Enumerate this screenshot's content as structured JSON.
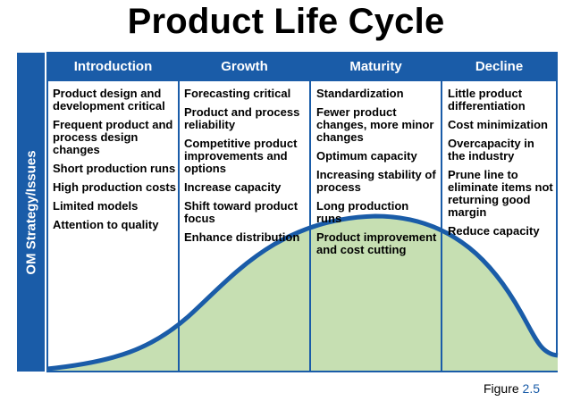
{
  "title": "Product Life Cycle",
  "side_label": "OM Strategy/Issues",
  "stages": [
    {
      "name": "Introduction",
      "items": [
        "Product design and development critical",
        "Frequent product and process design changes",
        "Short production runs",
        "High production costs",
        "Limited models",
        "Attention to quality"
      ]
    },
    {
      "name": "Growth",
      "items": [
        "Forecasting critical",
        "Product and process reliability",
        "Competitive product improvements and options",
        "Increase capacity",
        "Shift toward product focus",
        "Enhance distribution"
      ]
    },
    {
      "name": "Maturity",
      "items": [
        "Standardization",
        "Fewer product changes, more minor changes",
        "Optimum capacity",
        "Increasing stability of process",
        "Long production runs",
        "Product improvement and cost cutting"
      ]
    },
    {
      "name": "Decline",
      "items": [
        "Little product differentiation",
        "Cost minimization",
        "Overcapacity in the industry",
        "Prune line to eliminate items not returning good margin",
        "Reduce capacity"
      ]
    }
  ],
  "figure": {
    "prefix": "Figure ",
    "number": "2.5"
  },
  "colors": {
    "header_blue": "#1a5ca8",
    "curve_fill": "#c6dfb2",
    "curve_line": "#1a5ca8"
  }
}
